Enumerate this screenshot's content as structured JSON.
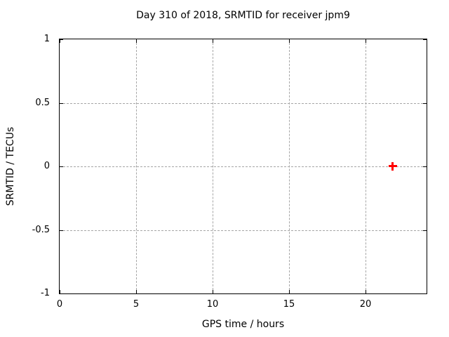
{
  "chart_data": {
    "type": "scatter",
    "title": "Day 310 of 2018, SRMTID for receiver jpm9",
    "xlabel": "GPS time / hours",
    "ylabel": "SRMTID / TECUs",
    "xlim": [
      0,
      24
    ],
    "ylim": [
      -1,
      1
    ],
    "xticks": [
      0,
      5,
      10,
      15,
      20
    ],
    "yticks": [
      1,
      0.5,
      0,
      -0.5,
      -1
    ],
    "grid": true,
    "legend": "none",
    "series": [
      {
        "name": "SRMTID point",
        "marker": "plus",
        "color": "#ff0000",
        "points": [
          {
            "x": 21.8,
            "y": 0.0
          }
        ]
      }
    ],
    "colors": {
      "axis": "#000000",
      "grid": "#a6a6a6",
      "background": "#ffffff",
      "marker": "#ff0000"
    }
  }
}
